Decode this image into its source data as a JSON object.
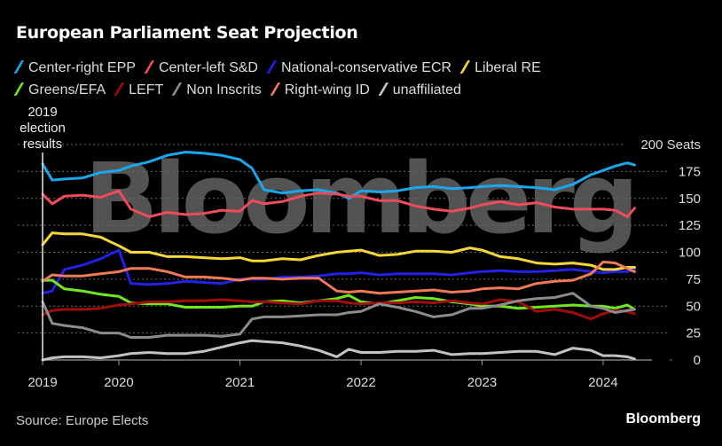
{
  "header": {
    "title": "European Parliament Seat Projection"
  },
  "footer": {
    "source": "Source: Europe Elects",
    "brand": "Bloomberg"
  },
  "watermark": "Bloomberg",
  "chart_data": {
    "type": "line",
    "title": "European Parliament Seat Projection",
    "xlabel": "",
    "ylabel": "Seats",
    "y_unit_label": "200 Seats",
    "ylim": [
      0,
      200
    ],
    "xlim": [
      2019.0,
      2024.6
    ],
    "yticks": [
      0,
      25,
      50,
      75,
      100,
      125,
      150,
      175,
      200
    ],
    "ytick_labels": [
      "0",
      "25",
      "50",
      "75",
      "100",
      "125",
      "150",
      "175",
      "200 Seats"
    ],
    "xticks": [
      2019,
      2020,
      2021,
      2022,
      2023,
      2024
    ],
    "xtick_labels": [
      "2019",
      "2020",
      "2021",
      "2022",
      "2023",
      "2024"
    ],
    "grid": true,
    "legend_position": "top",
    "annotations": [
      {
        "text": "2019 election results",
        "x": 2019.37
      }
    ],
    "x": [
      2019.37,
      2019.45,
      2019.55,
      2019.7,
      2019.85,
      2020.0,
      2020.1,
      2020.25,
      2020.4,
      2020.55,
      2020.7,
      2020.85,
      2021.0,
      2021.1,
      2021.2,
      2021.35,
      2021.5,
      2021.65,
      2021.8,
      2021.9,
      2022.0,
      2022.15,
      2022.3,
      2022.45,
      2022.6,
      2022.75,
      2022.9,
      2023.0,
      2023.15,
      2023.3,
      2023.45,
      2023.6,
      2023.75,
      2023.9,
      2024.0,
      2024.1,
      2024.2,
      2024.26
    ],
    "series": [
      {
        "name": "Center-right EPP",
        "color": "#1aa7ec",
        "values": [
          182,
          167,
          168,
          169,
          174,
          176,
          180,
          184,
          190,
          193,
          192,
          190,
          186,
          178,
          158,
          155,
          157,
          158,
          155,
          150,
          157,
          156,
          157,
          160,
          161,
          159,
          160,
          161,
          162,
          161,
          160,
          158,
          163,
          172,
          176,
          180,
          183,
          181
        ]
      },
      {
        "name": "Center-left S&D",
        "color": "#ef4b5a",
        "values": [
          154,
          145,
          152,
          153,
          151,
          157,
          140,
          133,
          137,
          135,
          136,
          139,
          138,
          148,
          145,
          147,
          152,
          155,
          154,
          152,
          152,
          148,
          148,
          143,
          140,
          138,
          141,
          144,
          147,
          144,
          146,
          142,
          140,
          140,
          140,
          139,
          133,
          141
        ]
      },
      {
        "name": "National-conservative ECR",
        "color": "#2121e8",
        "values": [
          62,
          64,
          84,
          88,
          94,
          102,
          71,
          70,
          71,
          73,
          72,
          71,
          75,
          75,
          75,
          77,
          77,
          78,
          80,
          80,
          81,
          79,
          80,
          80,
          80,
          79,
          81,
          82,
          83,
          82,
          82,
          83,
          84,
          82,
          81,
          82,
          82,
          84
        ]
      },
      {
        "name": "Liberal RE",
        "color": "#f7d63a",
        "values": [
          107,
          118,
          117,
          117,
          114,
          106,
          100,
          100,
          96,
          96,
          95,
          94,
          95,
          92,
          92,
          94,
          93,
          97,
          100,
          101,
          102,
          97,
          98,
          101,
          101,
          100,
          104,
          102,
          96,
          94,
          90,
          89,
          90,
          88,
          84,
          84,
          86,
          86
        ]
      },
      {
        "name": "Greens/EFA",
        "color": "#6fe81e",
        "values": [
          74,
          74,
          66,
          64,
          61,
          59,
          53,
          52,
          52,
          49,
          49,
          49,
          50,
          50,
          54,
          55,
          53,
          55,
          57,
          60,
          54,
          52,
          55,
          58,
          57,
          54,
          52,
          50,
          50,
          48,
          49,
          50,
          51,
          50,
          50,
          48,
          51,
          47
        ]
      },
      {
        "name": "LEFT",
        "color": "#a30b0b",
        "values": [
          42,
          46,
          47,
          47,
          48,
          51,
          52,
          54,
          54,
          55,
          55,
          56,
          55,
          54,
          54,
          53,
          52,
          55,
          55,
          53,
          52,
          53,
          53,
          54,
          53,
          55,
          53,
          52,
          56,
          54,
          45,
          47,
          44,
          38,
          43,
          46,
          45,
          43
        ]
      },
      {
        "name": "Non Inscrits",
        "color": "#8c8c8c",
        "values": [
          54,
          34,
          32,
          30,
          25,
          25,
          21,
          21,
          23,
          23,
          23,
          22,
          24,
          38,
          40,
          40,
          41,
          42,
          42,
          44,
          45,
          52,
          49,
          45,
          40,
          42,
          48,
          48,
          51,
          55,
          57,
          58,
          62,
          50,
          48,
          44,
          46,
          47
        ]
      },
      {
        "name": "Right-wing ID",
        "color": "#ef7a55",
        "values": [
          73,
          79,
          78,
          78,
          80,
          82,
          85,
          85,
          82,
          77,
          77,
          76,
          74,
          76,
          76,
          75,
          76,
          76,
          64,
          63,
          64,
          62,
          63,
          64,
          65,
          63,
          64,
          66,
          67,
          66,
          71,
          73,
          74,
          80,
          91,
          90,
          85,
          82
        ]
      },
      {
        "name": "unaffiliated",
        "color": "#c2c2c2",
        "values": [
          0,
          2,
          3,
          3,
          2,
          4,
          6,
          7,
          6,
          6,
          8,
          12,
          16,
          18,
          17,
          16,
          13,
          9,
          3,
          10,
          7,
          7,
          8,
          8,
          9,
          5,
          6,
          6,
          7,
          8,
          8,
          5,
          11,
          9,
          4,
          4,
          3,
          1
        ]
      }
    ]
  }
}
